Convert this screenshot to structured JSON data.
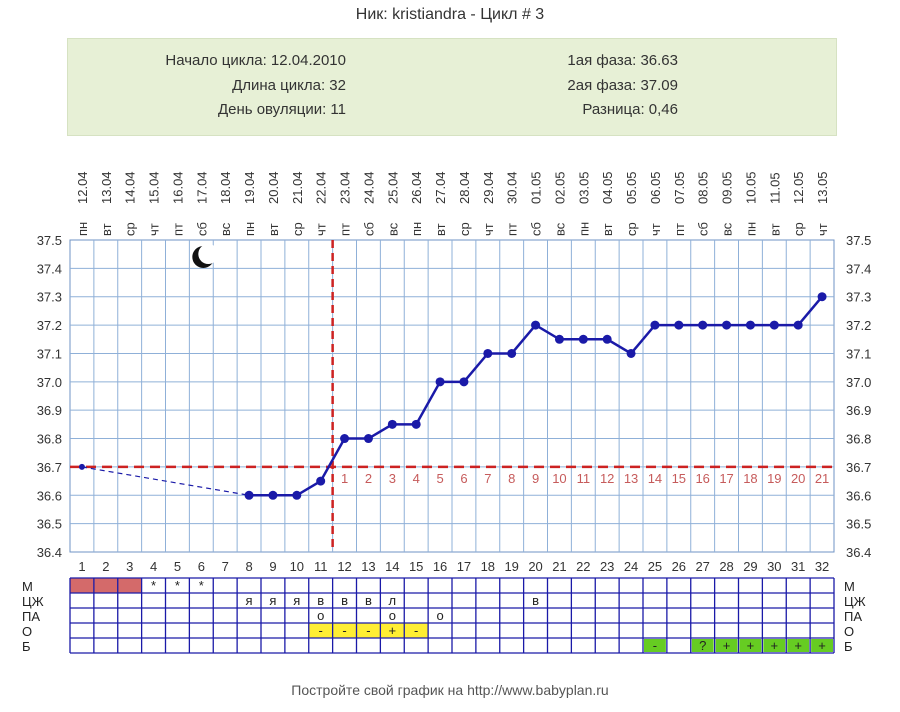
{
  "title": "Ник: kristiandra - Цикл # 3",
  "info": {
    "cycle_start": "Начало цикла: 12.04.2010",
    "cycle_length": "Длина цикла: 32",
    "ovulation_day": "День овуляции: 11",
    "phase1": "1ая фаза: 36.63",
    "phase2": "2ая фаза: 37.09",
    "difference": "Разница: 0,46"
  },
  "footer": "Постройте свой график на http://www.babyplan.ru",
  "colors": {
    "line": "#1a1aa8",
    "coverline": "#cc2222",
    "ovulation_line": "#cc2222",
    "menstruation": "#d46a6a",
    "yellow_cells": "#ffee33",
    "green_cells": "#66cc22",
    "grid": "#8fb0d8",
    "infobox": "#e7f0d6"
  },
  "moon_icon": "crescent-moon-icon",
  "chart_data": {
    "type": "line",
    "title": "Ник: kristiandra - Цикл # 3",
    "days": [
      1,
      2,
      3,
      4,
      5,
      6,
      7,
      8,
      9,
      10,
      11,
      12,
      13,
      14,
      15,
      16,
      17,
      18,
      19,
      20,
      21,
      22,
      23,
      24,
      25,
      26,
      27,
      28,
      29,
      30,
      31,
      32
    ],
    "dates": [
      "12.04",
      "13.04",
      "14.04",
      "15.04",
      "16.04",
      "17.04",
      "18.04",
      "19.04",
      "20.04",
      "21.04",
      "22.04",
      "23.04",
      "24.04",
      "25.04",
      "26.04",
      "27.04",
      "28.04",
      "29.04",
      "30.04",
      "01.05",
      "02.05",
      "03.05",
      "04.05",
      "05.05",
      "06.05",
      "07.05",
      "08.05",
      "09.05",
      "10.05",
      "11.05",
      "12.05",
      "13.05"
    ],
    "weekdays": [
      "пн",
      "вт",
      "ср",
      "чт",
      "пт",
      "сб",
      "вс",
      "пн",
      "вт",
      "ср",
      "чт",
      "пт",
      "сб",
      "вс",
      "пн",
      "вт",
      "ср",
      "чт",
      "пт",
      "сб",
      "вс",
      "пн",
      "вт",
      "ср",
      "чт",
      "пт",
      "сб",
      "вс",
      "пн",
      "вт",
      "ср",
      "чт"
    ],
    "temperatures": [
      36.7,
      null,
      null,
      null,
      null,
      null,
      null,
      36.6,
      36.6,
      36.6,
      36.65,
      36.8,
      36.8,
      36.85,
      36.85,
      37.0,
      37.0,
      37.1,
      37.1,
      37.2,
      37.15,
      37.15,
      37.15,
      37.1,
      37.2,
      37.2,
      37.2,
      37.2,
      37.2,
      37.2,
      37.2,
      37.3
    ],
    "yticks": [
      "37.5",
      "37.4",
      "37.3",
      "37.2",
      "37.1",
      "37.0",
      "36.9",
      "36.8",
      "36.7",
      "36.6",
      "36.5",
      "36.4"
    ],
    "ylim": [
      36.4,
      37.5
    ],
    "coverline": 36.7,
    "ovulation_day": 11,
    "phase2_numbers": [
      "1",
      "2",
      "3",
      "4",
      "5",
      "6",
      "7",
      "8",
      "9",
      "10",
      "11",
      "12",
      "13",
      "14",
      "15",
      "16",
      "17",
      "18",
      "19",
      "20",
      "21"
    ],
    "grid": true
  },
  "table": {
    "rows": [
      {
        "label": "М",
        "cells": {
          "4": "*",
          "5": "*",
          "6": "*"
        }
      },
      {
        "label": "ЦЖ",
        "cells": {
          "8": "я",
          "9": "я",
          "10": "я",
          "11": "в",
          "12": "в",
          "13": "в",
          "14": "л",
          "20": "в"
        }
      },
      {
        "label": "ПА",
        "cells": {
          "11": "о",
          "14": "о",
          "16": "о"
        }
      },
      {
        "label": "О",
        "cells": {
          "11": "-",
          "12": "-",
          "13": "-",
          "14": "+",
          "15": "-"
        }
      },
      {
        "label": "Б",
        "cells": {
          "25": "-",
          "27": "?",
          "28": "+",
          "29": "+",
          "30": "+",
          "31": "+",
          "32": "+"
        }
      }
    ]
  }
}
